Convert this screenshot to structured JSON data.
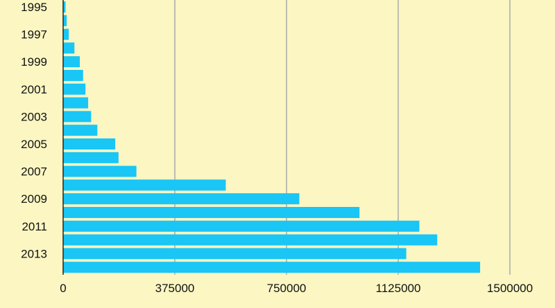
{
  "chart_data": {
    "type": "bar",
    "orientation": "horizontal",
    "title": "",
    "xlabel": "",
    "ylabel": "",
    "categories": [
      "1995",
      "1996",
      "1997",
      "1998",
      "1999",
      "2000",
      "2001",
      "2002",
      "2003",
      "2004",
      "2005",
      "2006",
      "2007",
      "2008",
      "2009",
      "2010",
      "2011",
      "2012",
      "2013",
      "2014"
    ],
    "values": [
      8000,
      12000,
      19000,
      38000,
      56000,
      67000,
      75000,
      84000,
      94000,
      115000,
      175000,
      186000,
      246000,
      546000,
      793000,
      995000,
      1196000,
      1256000,
      1152000,
      1400000
    ],
    "ytick_labels": [
      "1995",
      "1997",
      "1999",
      "2001",
      "2003",
      "2005",
      "2007",
      "2009",
      "2011",
      "2013"
    ],
    "xticks": [
      0,
      375000,
      750000,
      1125000,
      1500000
    ],
    "xlim": [
      0,
      1500000
    ],
    "grid": "vertical",
    "colors": {
      "bar": "#19c6f5",
      "background": "#fbf6c2",
      "grid": "#aaaaaa",
      "axis": "#222222"
    }
  }
}
